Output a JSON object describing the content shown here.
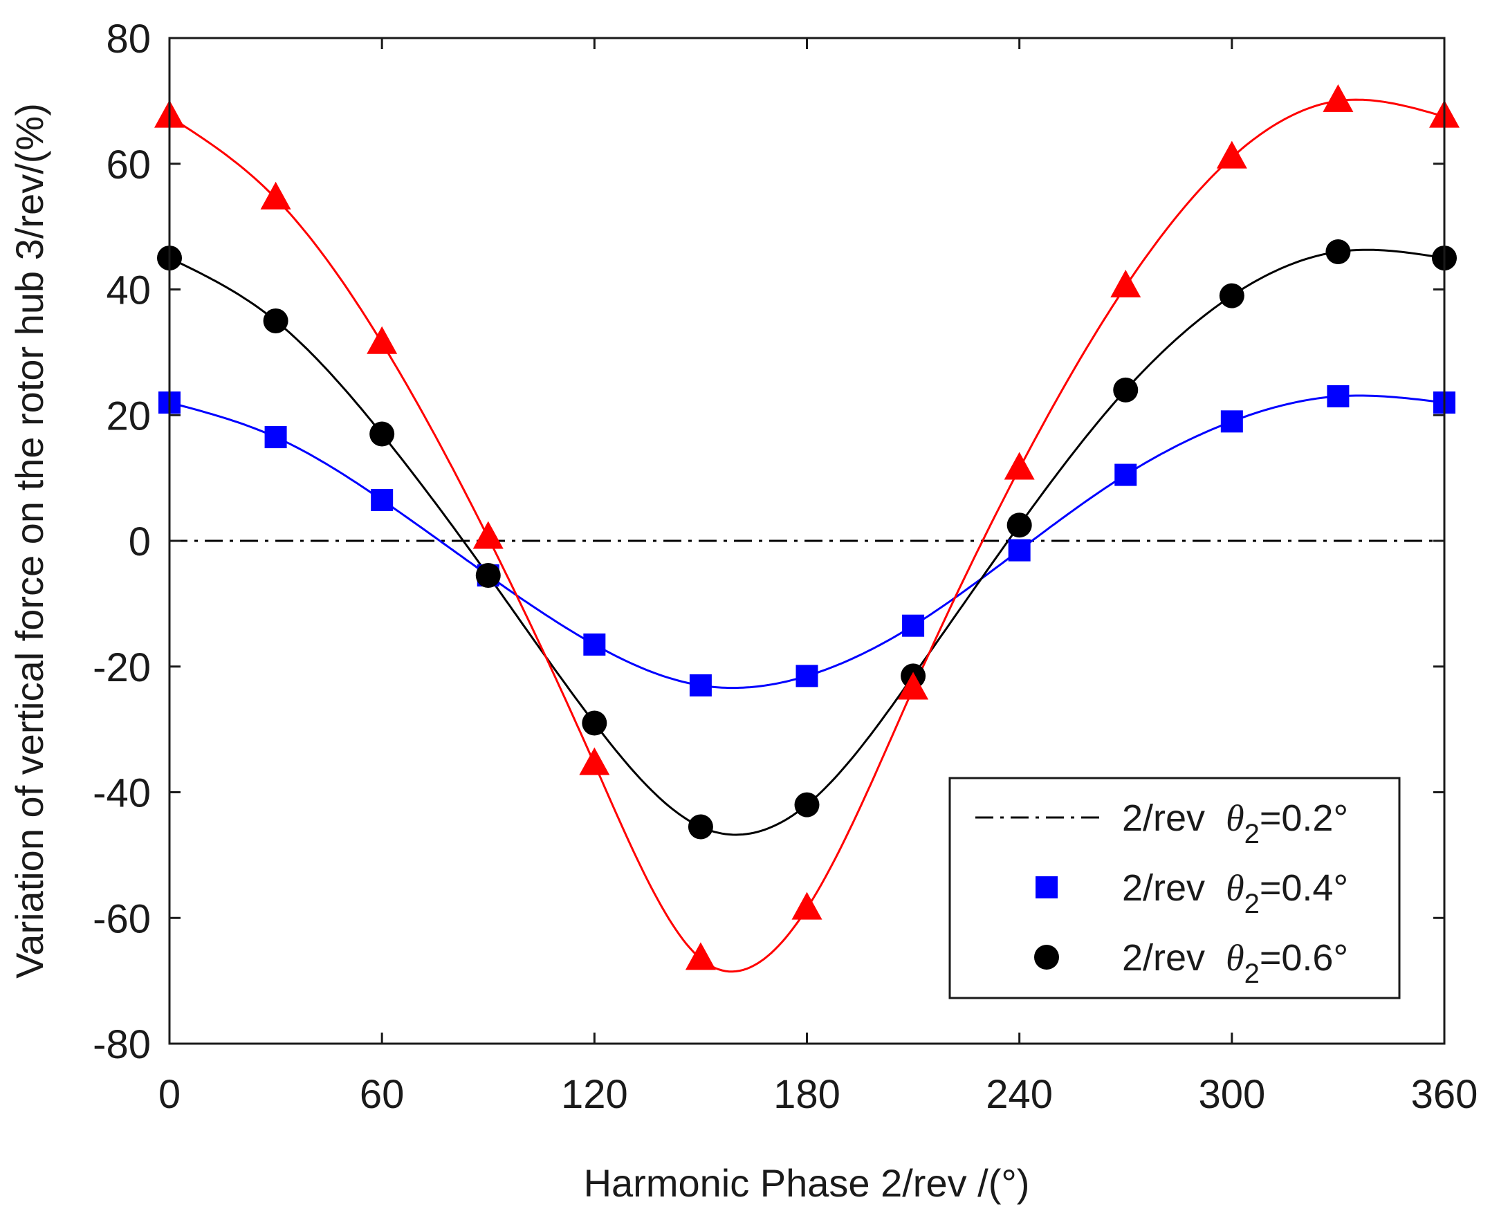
{
  "chart_data": {
    "type": "line",
    "title": "",
    "xlabel": "Harmonic Phase 2/rev /(°)",
    "ylabel": "Variation of vertical force on the rotor hub 3/rev/(%)",
    "xlim": [
      0,
      360
    ],
    "ylim": [
      -80,
      80
    ],
    "xticks": [
      "0",
      "60",
      "120",
      "180",
      "240",
      "300",
      "360"
    ],
    "yticks": [
      "80",
      "60",
      "40",
      "20",
      "0",
      "-20",
      "-40",
      "-60",
      "-80"
    ],
    "grid": false,
    "legend_position": "bottom-right",
    "x": [
      0,
      30,
      60,
      90,
      120,
      150,
      180,
      210,
      240,
      270,
      300,
      330,
      360
    ],
    "series": [
      {
        "name": "2/rev θ2=0.2°",
        "legend_prefix": "2/rev",
        "theta": "θ",
        "sub": "2",
        "value_label": "=0.2°",
        "marker": "none",
        "line": "dashdot",
        "color": "#000000",
        "values": [
          0,
          0,
          0,
          0,
          0,
          0,
          0,
          0,
          0,
          0,
          0,
          0,
          0
        ]
      },
      {
        "name": "2/rev θ2=0.4°",
        "legend_prefix": "2/rev",
        "theta": "θ",
        "sub": "2",
        "value_label": "=0.4°",
        "marker": "square",
        "line": "solid",
        "color": "#0000ff",
        "values": [
          22,
          16.5,
          6.5,
          -5.5,
          -16.5,
          -23,
          -21.5,
          -13.5,
          -1.5,
          10.5,
          19,
          23,
          22
        ]
      },
      {
        "name": "2/rev θ2=0.6°",
        "legend_prefix": "2/rev",
        "theta": "θ",
        "sub": "2",
        "value_label": "=0.6°",
        "marker": "circle",
        "line": "solid",
        "color": "#000000",
        "values": [
          45,
          35,
          17,
          -5.5,
          -29,
          -45.5,
          -42,
          -21.5,
          2.5,
          24,
          39,
          46,
          45
        ]
      },
      {
        "name": "",
        "marker": "triangle",
        "line": "solid",
        "color": "#ff0000",
        "in_legend": false,
        "values": [
          67.5,
          54.5,
          31.5,
          0.5,
          -35.5,
          -66.5,
          -58.5,
          -23.5,
          11.5,
          40.5,
          61,
          70,
          67.5
        ]
      }
    ]
  }
}
